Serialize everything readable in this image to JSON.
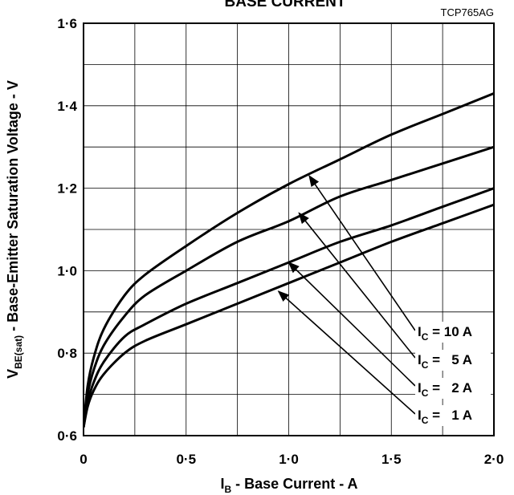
{
  "chart_data": {
    "type": "line",
    "title": "BASE CURRENT",
    "figure_code": "TCP765AG",
    "xlabel": {
      "main": "I",
      "sub": "B",
      "rest": " - Base Current - A"
    },
    "ylabel": {
      "main": "V",
      "sub": "BE(sat)",
      "rest": " - Base-Emitter Saturation Voltage - V"
    },
    "xlim": [
      0,
      2.0
    ],
    "ylim": [
      0.6,
      1.6
    ],
    "x_ticks": [
      0,
      0.5,
      1.0,
      1.5,
      2.0
    ],
    "x_tick_labels": [
      "0",
      "0·5",
      "1·0",
      "1·5",
      "2·0"
    ],
    "y_ticks": [
      0.6,
      0.8,
      1.0,
      1.2,
      1.4,
      1.6
    ],
    "y_tick_labels": [
      "0·6",
      "0·8",
      "1·0",
      "1·2",
      "1·4",
      "1·6"
    ],
    "grid": true,
    "series": [
      {
        "name": "I_C = 10 A",
        "label": {
          "pre": "I",
          "sub": "C",
          "post": " = 10 A"
        },
        "x": [
          0,
          0.02,
          0.05,
          0.1,
          0.2,
          0.3,
          0.5,
          0.75,
          1.0,
          1.25,
          1.5,
          1.75,
          2.0
        ],
        "y": [
          0.62,
          0.72,
          0.79,
          0.86,
          0.94,
          0.99,
          1.06,
          1.14,
          1.21,
          1.27,
          1.33,
          1.38,
          1.43
        ]
      },
      {
        "name": "I_C = 5 A",
        "label": {
          "pre": "I",
          "sub": "C",
          "post": " =   5 A"
        },
        "x": [
          0,
          0.02,
          0.05,
          0.1,
          0.2,
          0.3,
          0.5,
          0.75,
          1.0,
          1.25,
          1.5,
          1.75,
          2.0
        ],
        "y": [
          0.62,
          0.7,
          0.76,
          0.82,
          0.89,
          0.94,
          1.0,
          1.07,
          1.12,
          1.18,
          1.22,
          1.26,
          1.3
        ]
      },
      {
        "name": "I_C = 2 A",
        "label": {
          "pre": "I",
          "sub": "C",
          "post": " =   2 A"
        },
        "x": [
          0,
          0.02,
          0.05,
          0.1,
          0.2,
          0.3,
          0.5,
          0.75,
          1.0,
          1.25,
          1.5,
          1.75,
          2.0
        ],
        "y": [
          0.62,
          0.68,
          0.73,
          0.78,
          0.84,
          0.87,
          0.92,
          0.97,
          1.02,
          1.07,
          1.11,
          1.155,
          1.2
        ]
      },
      {
        "name": "I_C = 1 A",
        "label": {
          "pre": "I",
          "sub": "C",
          "post": " =   1 A"
        },
        "x": [
          0,
          0.02,
          0.05,
          0.1,
          0.2,
          0.3,
          0.5,
          0.75,
          1.0,
          1.25,
          1.5,
          1.75,
          2.0
        ],
        "y": [
          0.62,
          0.67,
          0.71,
          0.75,
          0.8,
          0.83,
          0.87,
          0.92,
          0.97,
          1.02,
          1.07,
          1.115,
          1.16
        ]
      }
    ],
    "arrows": [
      {
        "series": "I_C = 10 A",
        "x": 1.1,
        "y": 1.23
      },
      {
        "series": "I_C = 5 A",
        "x": 1.05,
        "y": 1.14
      },
      {
        "series": "I_C = 2 A",
        "x": 1.0,
        "y": 1.02
      },
      {
        "series": "I_C = 1 A",
        "x": 0.95,
        "y": 0.95
      }
    ],
    "line_color": "#000000",
    "legend_placement": "bottom-right inside plot"
  }
}
